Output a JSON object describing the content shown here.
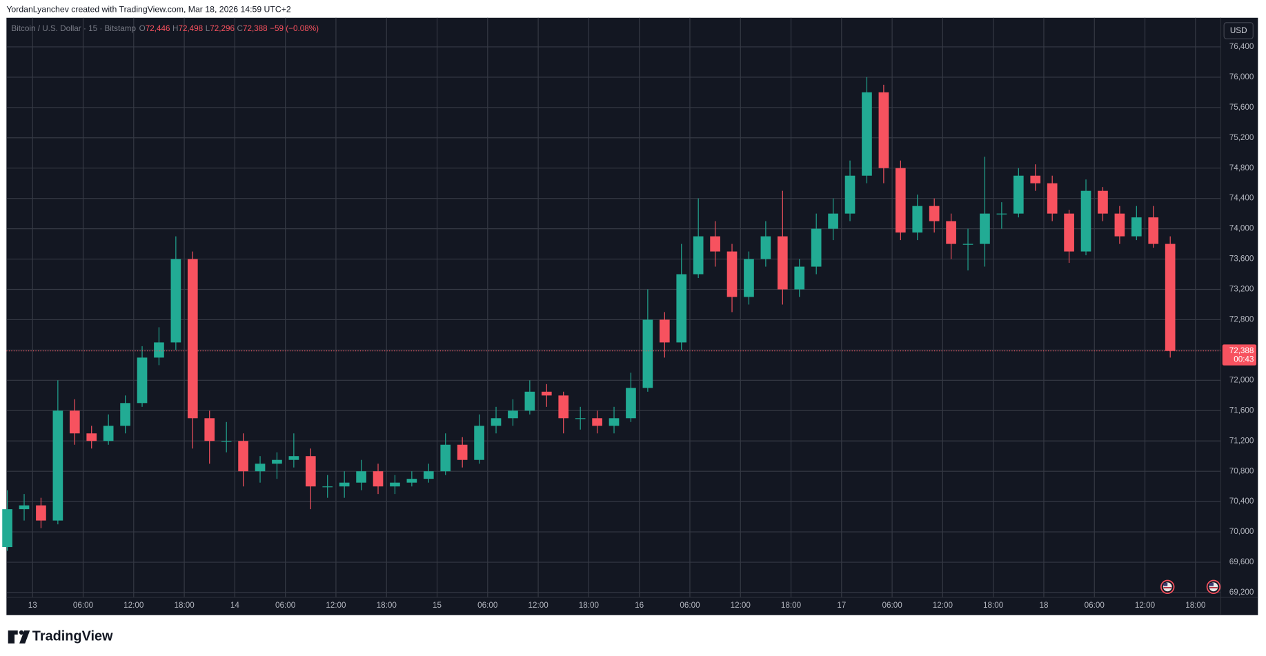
{
  "header": {
    "attribution": "YordanLyanchev created with TradingView.com, Mar 18, 2026 14:59 UTC+2"
  },
  "footer": {
    "brand": "TradingView"
  },
  "chart_data": {
    "type": "candlestick",
    "title": "Bitcoin / U.S. Dollar · 15 · Bitstamp",
    "ohlc": [
      {
        "label": "O",
        "value": "72,446"
      },
      {
        "label": "H",
        "value": "72,498"
      },
      {
        "label": "L",
        "value": "72,296"
      },
      {
        "label": "C",
        "value": "72,388"
      }
    ],
    "change": "−59 (−0.08%)",
    "currency": "USD",
    "last_price": {
      "value": 72388,
      "label": "72,388"
    },
    "countdown": "00:43",
    "up_color": "#22ab94",
    "down_color": "#f7525f",
    "background": "#131722",
    "grid": true,
    "x": [
      -3,
      -1,
      1,
      3,
      5,
      7,
      9,
      11,
      13,
      15,
      17,
      19,
      21,
      23,
      25,
      27,
      29,
      31,
      33,
      35,
      37,
      39,
      41,
      43,
      45,
      47,
      49,
      51,
      53,
      55,
      57,
      59,
      61,
      63,
      65,
      67,
      69,
      71,
      73,
      75,
      77,
      79,
      81,
      83,
      85,
      87,
      89,
      91,
      93,
      95,
      97,
      99,
      101,
      103,
      105,
      107,
      109,
      111,
      113,
      115,
      117,
      119,
      121,
      123,
      125,
      127,
      129,
      131,
      133,
      135
    ],
    "open": [
      69800,
      70300,
      70350,
      70150,
      71600,
      71300,
      71200,
      71400,
      71700,
      72300,
      72500,
      73600,
      71500,
      71200,
      71200,
      70800,
      70900,
      70950,
      71000,
      70600,
      70600,
      70650,
      70800,
      70600,
      70650,
      70700,
      70800,
      71150,
      70950,
      71400,
      71500,
      71600,
      71850,
      71800,
      71500,
      71500,
      71400,
      71500,
      71900,
      72800,
      72500,
      73400,
      73900,
      73700,
      73100,
      73600,
      73900,
      73200,
      73500,
      74000,
      74200,
      74700,
      75800,
      74800,
      73950,
      74300,
      74100,
      73800,
      73800,
      74200,
      74200,
      74700,
      74600,
      74200,
      73700,
      74500,
      74200,
      73900,
      74150,
      73800
    ],
    "high": [
      70550,
      70500,
      70450,
      72000,
      71750,
      71400,
      71550,
      71800,
      72450,
      72700,
      73900,
      73700,
      71600,
      71450,
      71300,
      71000,
      71050,
      71300,
      71100,
      70750,
      70800,
      70950,
      70900,
      70750,
      70800,
      70900,
      71300,
      71250,
      71550,
      71650,
      71750,
      72000,
      71950,
      71850,
      71650,
      71600,
      71650,
      72100,
      73200,
      72900,
      73800,
      74400,
      74100,
      73800,
      73700,
      74100,
      74500,
      73600,
      74200,
      74400,
      74900,
      76000,
      75900,
      74900,
      74450,
      74400,
      74200,
      74000,
      74950,
      74350,
      74800,
      74850,
      74700,
      74250,
      74650,
      74550,
      74300,
      74300,
      74300,
      73900
    ],
    "low": [
      69750,
      70150,
      70050,
      70100,
      71150,
      71100,
      71150,
      71300,
      71650,
      72200,
      72400,
      71100,
      70900,
      71050,
      70600,
      70650,
      70700,
      70850,
      70300,
      70450,
      70450,
      70550,
      70500,
      70500,
      70600,
      70650,
      70750,
      70850,
      70900,
      71300,
      71400,
      71550,
      71650,
      71300,
      71350,
      71300,
      71300,
      71450,
      71850,
      72300,
      72400,
      73350,
      73500,
      72900,
      73000,
      73500,
      73000,
      73100,
      73400,
      73850,
      74100,
      74600,
      74600,
      73850,
      73850,
      73950,
      73600,
      73450,
      73500,
      74000,
      74150,
      74500,
      74100,
      73550,
      73650,
      74100,
      73800,
      73850,
      73750,
      72300
    ],
    "close": [
      70300,
      70350,
      70150,
      71600,
      71300,
      71200,
      71400,
      71700,
      72300,
      72500,
      73600,
      71500,
      71200,
      71200,
      70800,
      70900,
      70950,
      71000,
      70600,
      70600,
      70650,
      70800,
      70600,
      70650,
      70700,
      70800,
      71150,
      70950,
      71400,
      71500,
      71600,
      71850,
      71800,
      71500,
      71500,
      71400,
      71500,
      71900,
      72800,
      72500,
      73400,
      73900,
      73700,
      73100,
      73600,
      73900,
      73200,
      73500,
      74000,
      74200,
      74700,
      75800,
      74800,
      73950,
      74300,
      74100,
      73800,
      73800,
      74200,
      74200,
      74700,
      74600,
      74200,
      73700,
      74500,
      74200,
      73900,
      74150,
      73800,
      72388
    ],
    "xlim": [
      -3.1,
      141
    ],
    "ylim": [
      69136,
      76773
    ],
    "xticks": [
      {
        "value": 0,
        "label": "13"
      },
      {
        "value": 6,
        "label": "06:00"
      },
      {
        "value": 12,
        "label": "12:00"
      },
      {
        "value": 18,
        "label": "18:00"
      },
      {
        "value": 24,
        "label": "14"
      },
      {
        "value": 30,
        "label": "06:00"
      },
      {
        "value": 36,
        "label": "12:00"
      },
      {
        "value": 42,
        "label": "18:00"
      },
      {
        "value": 48,
        "label": "15"
      },
      {
        "value": 54,
        "label": "06:00"
      },
      {
        "value": 60,
        "label": "12:00"
      },
      {
        "value": 66,
        "label": "18:00"
      },
      {
        "value": 72,
        "label": "16"
      },
      {
        "value": 78,
        "label": "06:00"
      },
      {
        "value": 84,
        "label": "12:00"
      },
      {
        "value": 90,
        "label": "18:00"
      },
      {
        "value": 96,
        "label": "17"
      },
      {
        "value": 102,
        "label": "06:00"
      },
      {
        "value": 108,
        "label": "12:00"
      },
      {
        "value": 114,
        "label": "18:00"
      },
      {
        "value": 120,
        "label": "18"
      },
      {
        "value": 126,
        "label": "06:00"
      },
      {
        "value": 132,
        "label": "12:00"
      },
      {
        "value": 138,
        "label": "18:00"
      }
    ],
    "yticks": [
      {
        "value": 69200,
        "label": "69,200"
      },
      {
        "value": 69600,
        "label": "69,600"
      },
      {
        "value": 70000,
        "label": "70,000"
      },
      {
        "value": 70400,
        "label": "70,400"
      },
      {
        "value": 70800,
        "label": "70,800"
      },
      {
        "value": 71200,
        "label": "71,200"
      },
      {
        "value": 71600,
        "label": "71,600"
      },
      {
        "value": 72000,
        "label": "72,000"
      },
      {
        "value": 72400,
        "label": "72,400"
      },
      {
        "value": 72800,
        "label": "72,800"
      },
      {
        "value": 73200,
        "label": "73,200"
      },
      {
        "value": 73600,
        "label": "73,600"
      },
      {
        "value": 74000,
        "label": "74,000"
      },
      {
        "value": 74400,
        "label": "74,400"
      },
      {
        "value": 74800,
        "label": "74,800"
      },
      {
        "value": 75200,
        "label": "75,200"
      },
      {
        "value": 75600,
        "label": "75,600"
      },
      {
        "value": 76000,
        "label": "76,000"
      },
      {
        "value": 76400,
        "label": "76,400"
      }
    ]
  }
}
